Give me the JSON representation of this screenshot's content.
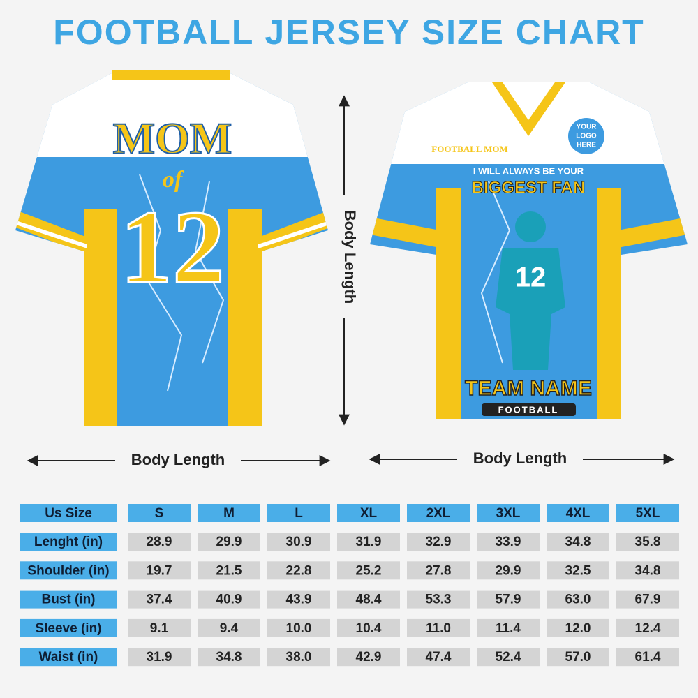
{
  "title": "FOOTBALL JERSEY SIZE CHART",
  "back_jersey": {
    "name": "MOM",
    "of": "of",
    "number": "12"
  },
  "front_jersey": {
    "label": "FOOTBALL MOM",
    "logo": [
      "YOUR",
      "LOGO",
      "HERE"
    ],
    "slogan": [
      "I WILL ALWAYS BE YOUR",
      "BIGGEST FAN"
    ],
    "number": "12",
    "team": "TEAM NAME",
    "sport": "FOOTBALL"
  },
  "measurements": {
    "vertical": "Body Length",
    "back_width": "Body Length",
    "front_width": "Body Length"
  },
  "table": {
    "header": [
      "Us Size",
      "S",
      "M",
      "L",
      "XL",
      "2XL",
      "3XL",
      "4XL",
      "5XL"
    ],
    "rows": [
      [
        "Lenght (in)",
        "28.9",
        "29.9",
        "30.9",
        "31.9",
        "32.9",
        "33.9",
        "34.8",
        "35.8"
      ],
      [
        "Shoulder (in)",
        "19.7",
        "21.5",
        "22.8",
        "25.2",
        "27.8",
        "29.9",
        "32.5",
        "34.8"
      ],
      [
        "Bust (in)",
        "37.4",
        "40.9",
        "43.9",
        "48.4",
        "53.3",
        "57.9",
        "63.0",
        "67.9"
      ],
      [
        "Sleeve (in)",
        "9.1",
        "9.4",
        "10.0",
        "10.4",
        "11.0",
        "11.4",
        "12.0",
        "12.4"
      ],
      [
        "Waist (in)",
        "31.9",
        "34.8",
        "38.0",
        "42.9",
        "47.4",
        "52.4",
        "57.0",
        "61.4"
      ]
    ]
  }
}
